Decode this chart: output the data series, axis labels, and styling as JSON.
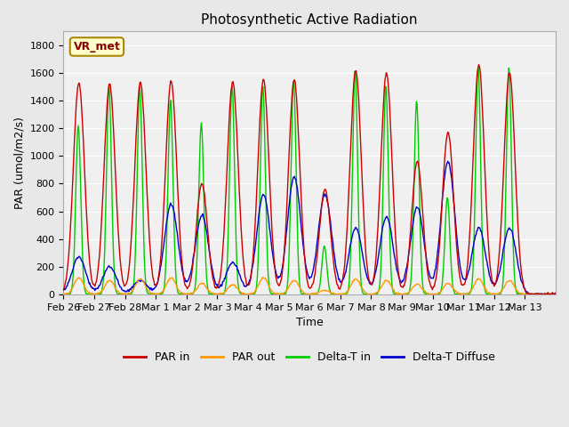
{
  "title": "Photosynthetic Active Radiation",
  "xlabel": "Time",
  "ylabel": "PAR (umol/m2/s)",
  "label_box": "VR_met",
  "ylim": [
    0,
    1900
  ],
  "yticks": [
    0,
    200,
    400,
    600,
    800,
    1000,
    1200,
    1400,
    1600,
    1800
  ],
  "xtick_labels": [
    "Feb 26",
    "Feb 27",
    "Feb 28",
    "Mar 1",
    "Mar 2",
    "Mar 3",
    "Mar 4",
    "Mar 5",
    "Mar 6",
    "Mar 7",
    "Mar 8",
    "Mar 9",
    "Mar 10",
    "Mar 11",
    "Mar 12",
    "Mar 13"
  ],
  "colors": {
    "PAR_in": "#cc0000",
    "PAR_out": "#ff9900",
    "Delta_T_in": "#00cc00",
    "Delta_T_Diffuse": "#0000cc"
  },
  "background_color": "#e8e8e8",
  "plot_bg": "#f0f0f0",
  "n_days": 16,
  "pts_per_day": 48,
  "par_in_peaks": [
    1530,
    1520,
    1530,
    1540,
    800,
    1540,
    1550,
    1550,
    760,
    1620,
    1600,
    960,
    1170,
    1660,
    1600,
    0
  ],
  "par_out_peaks": [
    120,
    100,
    110,
    120,
    80,
    70,
    120,
    100,
    30,
    110,
    100,
    75,
    80,
    110,
    100,
    0
  ],
  "delta_in_peaks": [
    1220,
    1500,
    1500,
    1400,
    1240,
    1510,
    1510,
    1550,
    350,
    1620,
    1510,
    1400,
    700,
    1640,
    1640,
    0
  ],
  "delta_diff_peaks": [
    270,
    200,
    100,
    650,
    570,
    230,
    720,
    850,
    720,
    480,
    560,
    630,
    960,
    480,
    480,
    0
  ]
}
